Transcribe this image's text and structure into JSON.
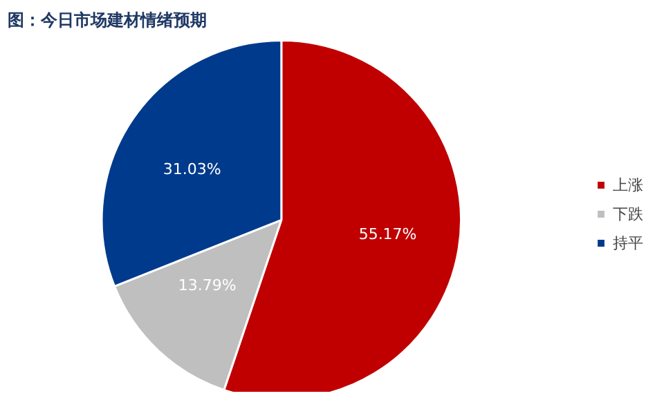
{
  "chart_data": {
    "type": "pie",
    "title": "图：今日市场建材情绪预期",
    "categories": [
      "上涨",
      "下跌",
      "持平"
    ],
    "values": [
      55.17,
      13.79,
      31.03
    ],
    "colors": [
      "#c00000",
      "#bfbfbf",
      "#003a8c"
    ],
    "value_labels": [
      "55.17%",
      "13.79%",
      "31.03%"
    ],
    "legend": "right"
  }
}
